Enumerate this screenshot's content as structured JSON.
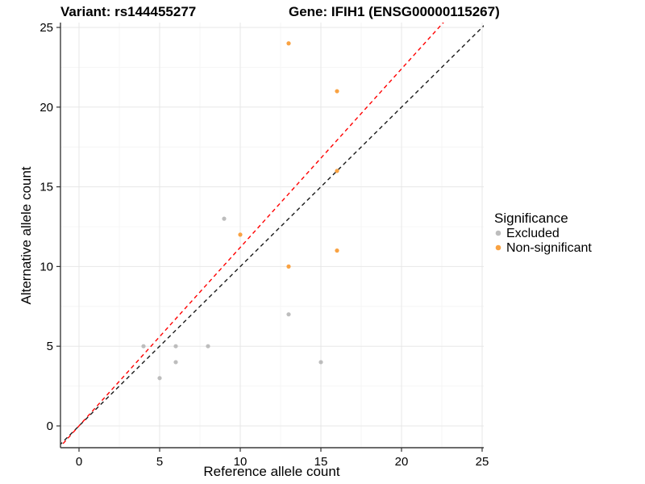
{
  "titles": {
    "left": "Variant: rs144455277",
    "right": "Gene: IFIH1 (ENSG00000115267)"
  },
  "chart_data": {
    "type": "scatter",
    "xlabel": "Reference allele count",
    "ylabel": "Alternative allele count",
    "xlim": [
      -1.2,
      25.2
    ],
    "ylim": [
      -1.4,
      25.3
    ],
    "x_ticks": [
      0,
      5,
      10,
      15,
      20,
      25
    ],
    "y_ticks": [
      0,
      5,
      10,
      15,
      20,
      25
    ],
    "minor_ticks": [
      2.5,
      7.5,
      12.5,
      17.5,
      22.5
    ],
    "grid": true,
    "series": [
      {
        "name": "Excluded",
        "color": "#BDBDBD",
        "points": [
          [
            4,
            5
          ],
          [
            5,
            3
          ],
          [
            6,
            4
          ],
          [
            6,
            5
          ],
          [
            8,
            5
          ],
          [
            9,
            13
          ],
          [
            13,
            7
          ],
          [
            15,
            4
          ]
        ]
      },
      {
        "name": "Non-significant",
        "color": "#F9A242",
        "points": [
          [
            10,
            12
          ],
          [
            13,
            10
          ],
          [
            13,
            24
          ],
          [
            16,
            11
          ],
          [
            16,
            16
          ],
          [
            16,
            21
          ]
        ]
      }
    ],
    "lines": [
      {
        "name": "identity-line",
        "slope": 1,
        "intercept": 0,
        "color": "#1a1a1a",
        "style": "dashed"
      },
      {
        "name": "expected-ratio-line",
        "slope": 1.12,
        "intercept": 0,
        "color": "#FF0000",
        "style": "dashed"
      }
    ],
    "legend": {
      "title": "Significance",
      "position": "right",
      "items": [
        {
          "label": "Excluded",
          "color": "#BDBDBD"
        },
        {
          "label": "Non-significant",
          "color": "#F9A242"
        }
      ]
    },
    "style": {
      "grid_major_color": "#e7e7e7",
      "grid_minor_color": "#f4f4f4",
      "axis_color": "#3c3c3c",
      "tick_color": "#333333"
    }
  }
}
